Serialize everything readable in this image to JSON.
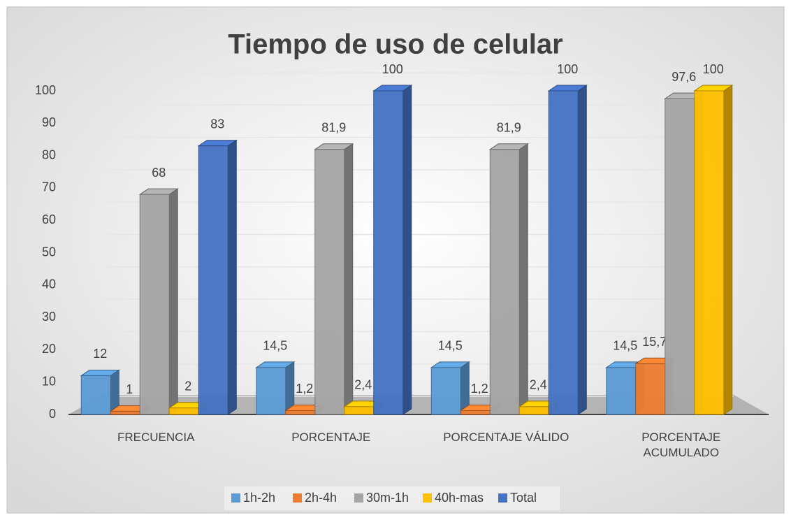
{
  "chart_data": {
    "type": "bar3d",
    "title": "Tiempo de uso de celular",
    "categories": [
      "FRECUENCIA",
      "PORCENTAJE",
      "PORCENTAJE VÁLIDO",
      "PORCENTAJE ACUMULADO"
    ],
    "series": [
      {
        "name": "1h-2h",
        "color": "#5b9bd5",
        "values": [
          12,
          14.5,
          14.5,
          14.5
        ],
        "value_labels": [
          "12",
          "14,5",
          "14,5",
          "14,5"
        ]
      },
      {
        "name": "2h-4h",
        "color": "#ed7d31",
        "values": [
          1,
          1.2,
          1.2,
          15.7
        ],
        "value_labels": [
          "1",
          "1,2",
          "1,2",
          "15,7"
        ]
      },
      {
        "name": "30m-1h",
        "color": "#a5a5a5",
        "values": [
          68,
          81.9,
          81.9,
          97.6
        ],
        "value_labels": [
          "68",
          "81,9",
          "81,9",
          "97,6"
        ]
      },
      {
        "name": "40h-mas",
        "color": "#ffc000",
        "values": [
          2,
          2.4,
          2.4,
          100
        ],
        "value_labels": [
          "2",
          "2,4",
          "2,4",
          "100"
        ]
      },
      {
        "name": "Total",
        "color": "#4472c4",
        "values": [
          83,
          100,
          100,
          null
        ],
        "value_labels": [
          "83",
          "100",
          "100",
          null
        ]
      }
    ],
    "ylim": [
      0,
      100
    ],
    "yticks": [
      0,
      10,
      20,
      30,
      40,
      50,
      60,
      70,
      80,
      90,
      100
    ],
    "grid": true,
    "legend": "bottom"
  }
}
